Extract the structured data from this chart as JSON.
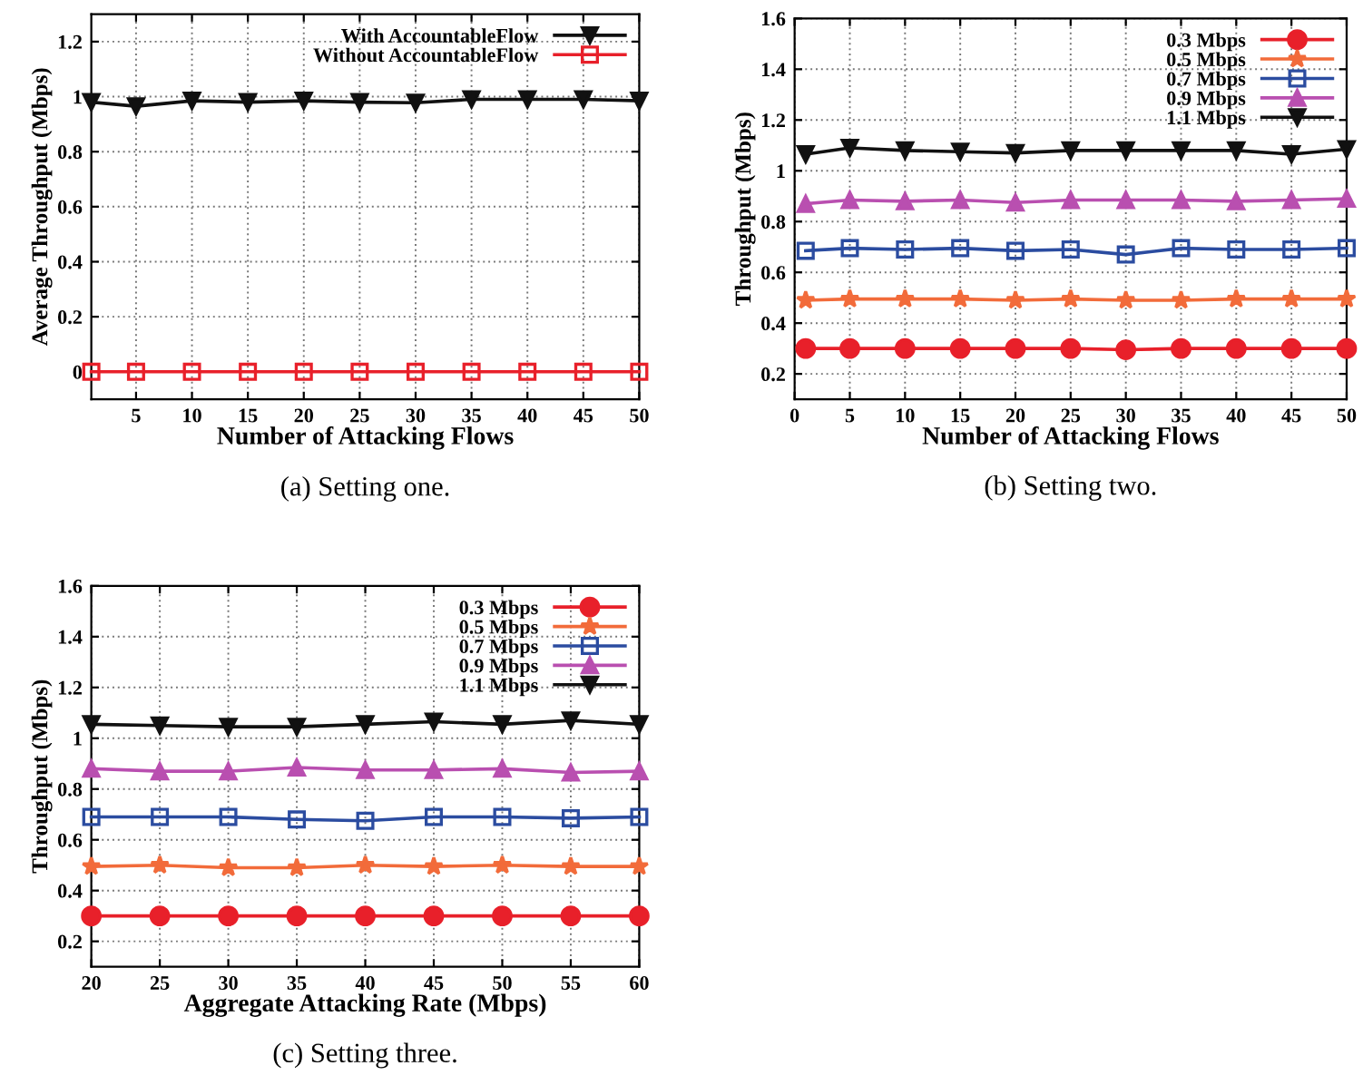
{
  "chart_data": [
    {
      "type": "line",
      "xlabel": "Number of Attacking Flows",
      "ylabel": "Average Throughput (Mbps)",
      "annotations": [
        "(a) Setting one."
      ],
      "x": [
        1,
        5,
        10,
        15,
        20,
        25,
        30,
        35,
        40,
        45,
        50
      ],
      "xlim": [
        1,
        50
      ],
      "xticks": [
        5,
        10,
        15,
        20,
        25,
        30,
        35,
        40,
        45,
        50
      ],
      "ylim": [
        -0.1,
        1.3
      ],
      "yticks": [
        0,
        0.2,
        0.4,
        0.6,
        0.8,
        1,
        1.2
      ],
      "grid": true,
      "legend": "top right",
      "series": [
        {
          "name": "With AccountableFlow",
          "color": "#111111",
          "marker": "triangle_down",
          "values": [
            0.98,
            0.965,
            0.985,
            0.98,
            0.985,
            0.98,
            0.978,
            0.99,
            0.99,
            0.99,
            0.985
          ]
        },
        {
          "name": "Without AccountableFlow",
          "color": "#e8202a",
          "marker": "square",
          "values": [
            0,
            0,
            0,
            0,
            0,
            0,
            0,
            0,
            0,
            0,
            0
          ]
        }
      ]
    },
    {
      "type": "line",
      "xlabel": "Number of Attacking Flows",
      "ylabel": "Throughput (Mbps)",
      "annotations": [
        "(b) Setting two."
      ],
      "x": [
        1,
        5,
        10,
        15,
        20,
        25,
        30,
        35,
        40,
        45,
        50
      ],
      "xlim": [
        0,
        50
      ],
      "xticks": [
        0,
        5,
        10,
        15,
        20,
        25,
        30,
        35,
        40,
        45,
        50
      ],
      "ylim": [
        0.1,
        1.6
      ],
      "yticks": [
        0.2,
        0.4,
        0.6,
        0.8,
        1,
        1.2,
        1.4,
        1.6
      ],
      "grid": true,
      "legend": "top right",
      "series": [
        {
          "name": "0.3 Mbps",
          "color": "#e8202a",
          "marker": "circle",
          "values": [
            0.3,
            0.3,
            0.3,
            0.3,
            0.3,
            0.3,
            0.295,
            0.3,
            0.3,
            0.3,
            0.3
          ]
        },
        {
          "name": "0.5 Mbps",
          "color": "#f26b3a",
          "marker": "star",
          "values": [
            0.49,
            0.495,
            0.495,
            0.495,
            0.49,
            0.495,
            0.49,
            0.49,
            0.495,
            0.495,
            0.495
          ]
        },
        {
          "name": "0.7 Mbps",
          "color": "#2b4ca0",
          "marker": "square",
          "values": [
            0.685,
            0.695,
            0.69,
            0.695,
            0.685,
            0.69,
            0.67,
            0.695,
            0.69,
            0.69,
            0.695
          ]
        },
        {
          "name": "0.9 Mbps",
          "color": "#b94fb0",
          "marker": "triangle",
          "values": [
            0.87,
            0.885,
            0.88,
            0.885,
            0.875,
            0.885,
            0.885,
            0.885,
            0.88,
            0.885,
            0.89
          ]
        },
        {
          "name": "1.1 Mbps",
          "color": "#111111",
          "marker": "triangle_down",
          "values": [
            1.065,
            1.09,
            1.08,
            1.075,
            1.07,
            1.08,
            1.08,
            1.08,
            1.08,
            1.065,
            1.085
          ]
        }
      ]
    },
    {
      "type": "line",
      "xlabel": "Aggregate Attacking Rate (Mbps)",
      "ylabel": "Throughput (Mbps)",
      "annotations": [
        "(c) Setting three."
      ],
      "x": [
        20,
        25,
        30,
        35,
        40,
        45,
        50,
        55,
        60
      ],
      "xlim": [
        20,
        60
      ],
      "xticks": [
        20,
        25,
        30,
        35,
        40,
        45,
        50,
        55,
        60
      ],
      "ylim": [
        0.1,
        1.6
      ],
      "yticks": [
        0.2,
        0.4,
        0.6,
        0.8,
        1,
        1.2,
        1.4,
        1.6
      ],
      "grid": true,
      "legend": "top right",
      "series": [
        {
          "name": "0.3 Mbps",
          "color": "#e8202a",
          "marker": "circle",
          "values": [
            0.3,
            0.3,
            0.3,
            0.3,
            0.3,
            0.3,
            0.3,
            0.3,
            0.3
          ]
        },
        {
          "name": "0.5 Mbps",
          "color": "#f26b3a",
          "marker": "star",
          "values": [
            0.495,
            0.5,
            0.49,
            0.49,
            0.5,
            0.495,
            0.5,
            0.495,
            0.495
          ]
        },
        {
          "name": "0.7 Mbps",
          "color": "#2b4ca0",
          "marker": "square",
          "values": [
            0.69,
            0.69,
            0.69,
            0.68,
            0.675,
            0.69,
            0.69,
            0.685,
            0.69
          ]
        },
        {
          "name": "0.9 Mbps",
          "color": "#b94fb0",
          "marker": "triangle",
          "values": [
            0.88,
            0.87,
            0.87,
            0.885,
            0.875,
            0.875,
            0.88,
            0.865,
            0.87
          ]
        },
        {
          "name": "1.1 Mbps",
          "color": "#111111",
          "marker": "triangle_down",
          "values": [
            1.055,
            1.05,
            1.045,
            1.045,
            1.055,
            1.065,
            1.055,
            1.07,
            1.055
          ]
        }
      ]
    }
  ]
}
